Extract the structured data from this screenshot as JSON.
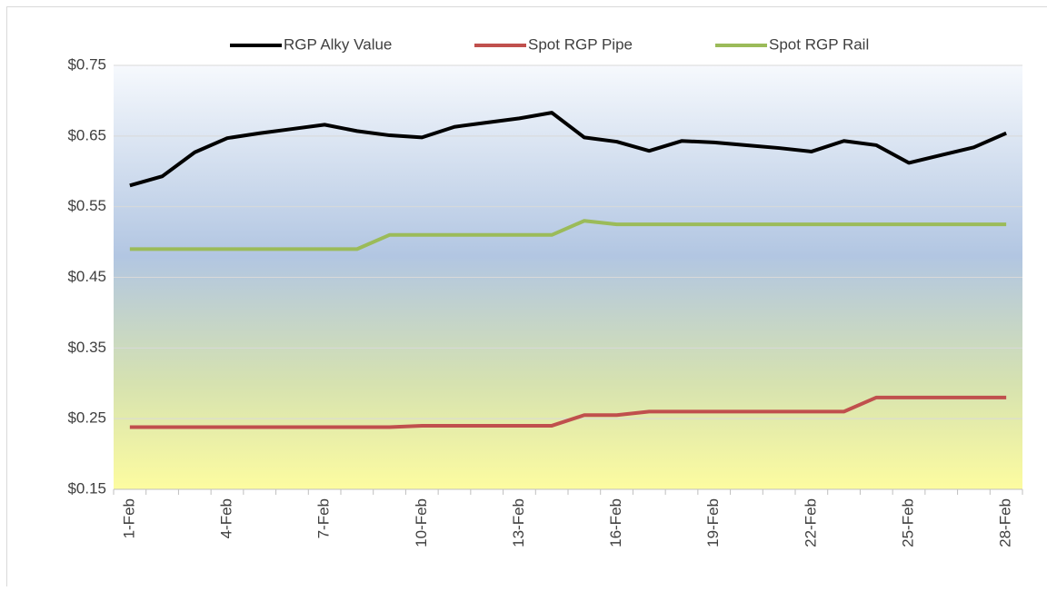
{
  "chart_data": {
    "type": "line",
    "categories": [
      "1-Feb",
      null,
      null,
      "4-Feb",
      null,
      null,
      "7-Feb",
      null,
      null,
      "10-Feb",
      null,
      null,
      "13-Feb",
      null,
      null,
      "16-Feb",
      null,
      null,
      "19-Feb",
      null,
      null,
      "22-Feb",
      null,
      null,
      "25-Feb",
      null,
      null,
      "28-Feb"
    ],
    "series": [
      {
        "name": "RGP Alky Value",
        "color": "#000000",
        "values": [
          0.58,
          0.593,
          0.627,
          0.647,
          0.654,
          0.66,
          0.666,
          0.657,
          0.651,
          0.648,
          0.663,
          0.669,
          0.675,
          0.683,
          0.648,
          0.642,
          0.629,
          0.643,
          0.641,
          0.637,
          0.633,
          0.628,
          0.643,
          0.637,
          0.612,
          0.623,
          0.634,
          0.654
        ]
      },
      {
        "name": "Spot RGP Pipe",
        "color": "#c0504d",
        "values": [
          0.238,
          0.238,
          0.238,
          0.238,
          0.238,
          0.238,
          0.238,
          0.238,
          0.238,
          0.24,
          0.24,
          0.24,
          0.24,
          0.24,
          0.255,
          0.255,
          0.26,
          0.26,
          0.26,
          0.26,
          0.26,
          0.26,
          0.26,
          0.28,
          0.28,
          0.28,
          0.28,
          0.28
        ]
      },
      {
        "name": "Spot RGP Rail",
        "color": "#9bbb59",
        "values": [
          0.49,
          0.49,
          0.49,
          0.49,
          0.49,
          0.49,
          0.49,
          0.49,
          0.51,
          0.51,
          0.51,
          0.51,
          0.51,
          0.51,
          0.53,
          0.525,
          0.525,
          0.525,
          0.525,
          0.525,
          0.525,
          0.525,
          0.525,
          0.525,
          0.525,
          0.525,
          0.525,
          0.525
        ]
      }
    ],
    "ylim": [
      0.15,
      0.75
    ],
    "yticks": [
      {
        "value": 0.15,
        "label": "$0.15"
      },
      {
        "value": 0.25,
        "label": "$0.25"
      },
      {
        "value": 0.35,
        "label": "$0.35"
      },
      {
        "value": 0.45,
        "label": "$0.45"
      },
      {
        "value": 0.55,
        "label": "$0.55"
      },
      {
        "value": 0.65,
        "label": "$0.65"
      },
      {
        "value": 0.75,
        "label": "$0.75"
      }
    ],
    "grid": true,
    "legend": "top"
  }
}
